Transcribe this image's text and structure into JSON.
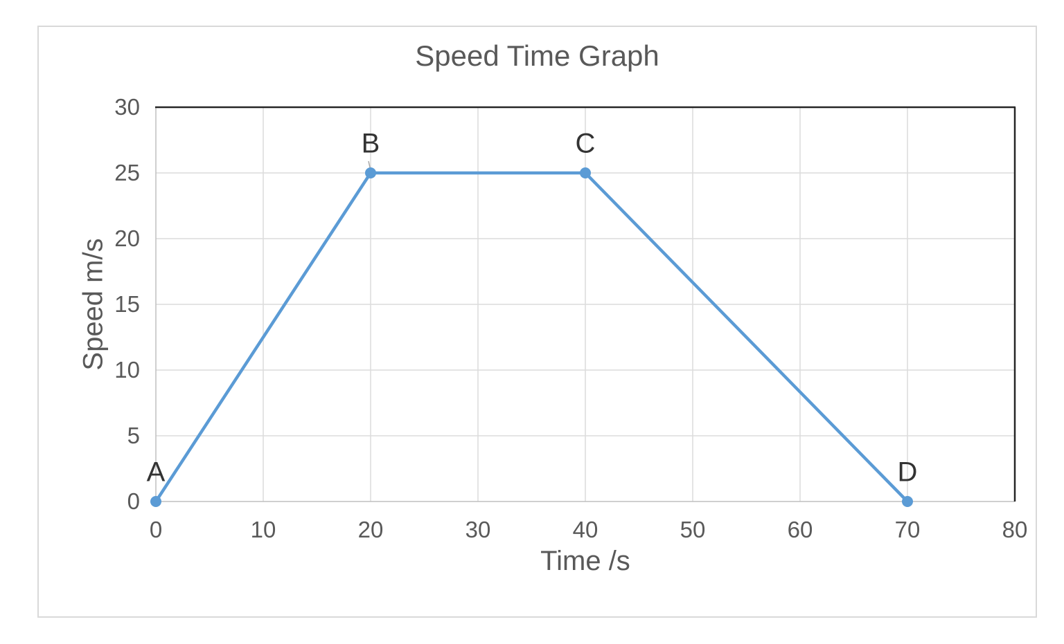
{
  "chart_data": {
    "type": "line",
    "title": "Speed Time Graph",
    "xlabel": "Time /s",
    "ylabel": "Speed m/s",
    "xlim": [
      0,
      80
    ],
    "ylim": [
      0,
      30
    ],
    "x_ticks": [
      0,
      10,
      20,
      30,
      40,
      50,
      60,
      70,
      80
    ],
    "y_ticks": [
      0,
      5,
      10,
      15,
      20,
      25,
      30
    ],
    "grid": true,
    "legend": false,
    "series": [
      {
        "name": "Speed",
        "color": "#5b9bd5",
        "marker": "circle",
        "points": [
          {
            "label": "A",
            "x": 0,
            "y": 0
          },
          {
            "label": "B",
            "x": 20,
            "y": 25
          },
          {
            "label": "C",
            "x": 40,
            "y": 25
          },
          {
            "label": "D",
            "x": 70,
            "y": 0
          }
        ]
      }
    ],
    "style": {
      "line_color": "#5b9bd5",
      "marker_color": "#5b9bd5",
      "gridline_color": "#dcdcdc",
      "axis_line_color": "#bfbfbf",
      "plot_border_color": "#262626",
      "chart_border_color": "#d9d9d9",
      "text_color": "#595959",
      "point_label_color": "#333333",
      "leader_line_color": "#a6a6a6",
      "background": "#ffffff"
    }
  }
}
